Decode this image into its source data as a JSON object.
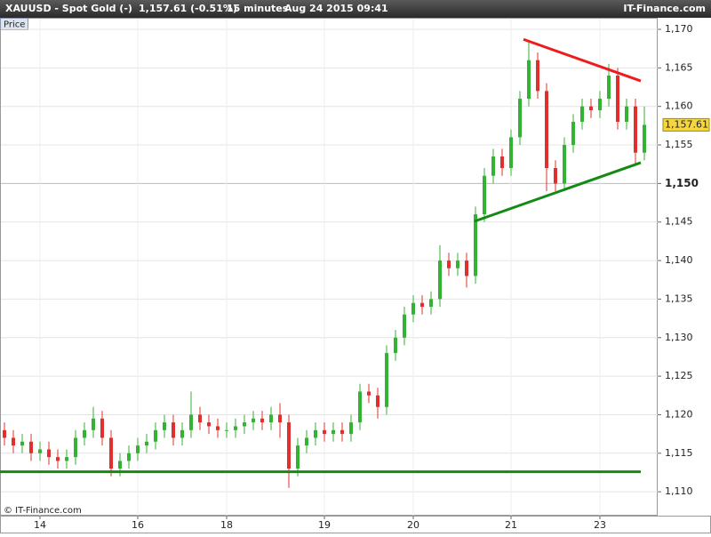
{
  "chart_data": {
    "type": "candlestick",
    "header": {
      "symbol": "XAUUSD - Spot Gold (-)",
      "quote": "1,157.61 (-0.51%)",
      "interval": "15 minutes",
      "datetime": "Aug 24 2015 09:41",
      "site": "IT-Finance.com"
    },
    "panel_label": "Price",
    "copyright": "© IT-Finance.com",
    "up_color": "#33b233",
    "down_color": "#e0302e",
    "categories": [
      null,
      null,
      null,
      null,
      "14",
      null,
      null,
      null,
      null,
      null,
      null,
      null,
      null,
      null,
      null,
      "16",
      null,
      null,
      null,
      null,
      null,
      null,
      null,
      null,
      null,
      "18",
      null,
      null,
      null,
      null,
      null,
      null,
      null,
      null,
      null,
      null,
      "19",
      null,
      null,
      null,
      null,
      null,
      null,
      null,
      null,
      null,
      "20",
      null,
      null,
      null,
      null,
      null,
      null,
      null,
      null,
      null,
      null,
      "21",
      null,
      null,
      null,
      null,
      null,
      null,
      null,
      null,
      null,
      "23",
      null,
      null,
      null,
      null,
      null
    ],
    "open": [
      1118,
      1117,
      1116,
      1116.5,
      1115,
      1115.5,
      1114.5,
      1114,
      1114.5,
      1117,
      1118,
      1119.5,
      1117,
      1113,
      1114,
      1115,
      1116,
      1116.5,
      1118,
      1119,
      1117,
      1118,
      1120,
      1119,
      1118.5,
      1118,
      1118,
      1118.5,
      1119,
      1119.5,
      1119,
      1120,
      1119,
      1113,
      1116,
      1117,
      1118,
      1117.5,
      1118,
      1117.5,
      1119,
      1123,
      1122.5,
      1121,
      1128,
      1130,
      1133,
      1134.5,
      1134,
      1135,
      1140,
      1139,
      1140,
      1138,
      1146,
      1151,
      1153.5,
      1152,
      1156,
      1161,
      1166,
      1162,
      1152,
      1150,
      1155,
      1158,
      1160,
      1159.5,
      1161,
      1164,
      1158,
      1160,
      1154
    ],
    "high": [
      1119,
      1118,
      1117.5,
      1117.5,
      1116.5,
      1116.5,
      1115.5,
      1115.5,
      1118,
      1119,
      1121,
      1120.5,
      1118,
      1115,
      1116,
      1117,
      1117.5,
      1119,
      1120,
      1120,
      1119,
      1123,
      1121,
      1120,
      1119.5,
      1119,
      1119.5,
      1120,
      1120.5,
      1120.5,
      1121,
      1121.5,
      1120,
      1117,
      1118,
      1119,
      1119,
      1119,
      1119,
      1120,
      1124,
      1124,
      1123.5,
      1129,
      1131,
      1134,
      1135.5,
      1135.5,
      1136,
      1142,
      1141,
      1141,
      1141,
      1147,
      1152,
      1154.5,
      1154.5,
      1157,
      1162,
      1168.5,
      1167,
      1163,
      1153,
      1156,
      1159,
      1161,
      1161,
      1162,
      1165.5,
      1165,
      1161,
      1161,
      1160
    ],
    "low": [
      1116,
      1115,
      1115,
      1114,
      1114,
      1113.5,
      1113,
      1113,
      1113.5,
      1116,
      1117,
      1116,
      1112,
      1112,
      1113,
      1114,
      1115,
      1115.5,
      1117,
      1116,
      1116,
      1117,
      1118,
      1117.5,
      1117,
      1117,
      1117,
      1117.5,
      1118,
      1118,
      1118,
      1117,
      1110.5,
      1112,
      1115,
      1116,
      1116.5,
      1116.5,
      1116.5,
      1116.5,
      1118,
      1121.5,
      1119.5,
      1120,
      1127,
      1129,
      1132,
      1133,
      1133,
      1134,
      1138,
      1138,
      1136.5,
      1137,
      1145,
      1150,
      1151,
      1151,
      1155,
      1160,
      1161,
      1149,
      1149,
      1149,
      1154,
      1157,
      1158.5,
      1158.5,
      1160,
      1157,
      1157,
      1152.5,
      1153
    ],
    "close": [
      1117,
      1116,
      1116.5,
      1115,
      1115.5,
      1114.5,
      1114,
      1114.5,
      1117,
      1118,
      1119.5,
      1117,
      1113,
      1114,
      1115,
      1116,
      1116.5,
      1118,
      1119,
      1117,
      1118,
      1120,
      1119,
      1118.5,
      1118,
      1118,
      1118.5,
      1119,
      1119.5,
      1119,
      1120,
      1119,
      1113,
      1116,
      1117,
      1118,
      1117.5,
      1118,
      1117.5,
      1119,
      1123,
      1122.5,
      1121,
      1128,
      1130,
      1133,
      1134.5,
      1134,
      1135,
      1140,
      1139,
      1140,
      1138,
      1146,
      1151,
      1153.5,
      1152,
      1156,
      1161,
      1166,
      1162,
      1152,
      1150,
      1155,
      1158,
      1160,
      1159.5,
      1161,
      1164,
      1158,
      1160,
      1154,
      1157.61
    ],
    "last_label": "1,157.61",
    "trendlines": [
      {
        "color": "#ee1c1c",
        "x": [
          58.4,
          71.6
        ],
        "y": [
          1168.7,
          1163.3
        ]
      },
      {
        "color": "#138a13",
        "x": [
          52.9,
          71.6
        ],
        "y": [
          1145.1,
          1152.7
        ]
      },
      {
        "color": "#138a13",
        "x": [
          -0.5,
          71.6
        ],
        "y": [
          1112.6,
          1112.6
        ]
      }
    ],
    "ylim": [
      1106.9,
      1171.5
    ],
    "yticks": [
      {
        "value": 1110,
        "label": "1,110"
      },
      {
        "value": 1115,
        "label": "1,115"
      },
      {
        "value": 1120,
        "label": "1,120"
      },
      {
        "value": 1125,
        "label": "1,125"
      },
      {
        "value": 1130,
        "label": "1,130"
      },
      {
        "value": 1135,
        "label": "1,135"
      },
      {
        "value": 1140,
        "label": "1,140"
      },
      {
        "value": 1145,
        "label": "1,145"
      },
      {
        "value": 1150,
        "label": "1,150",
        "bold": true
      },
      {
        "value": 1155,
        "label": "1,155"
      },
      {
        "value": 1160,
        "label": "1,160"
      },
      {
        "value": 1165,
        "label": "1,165"
      },
      {
        "value": 1170,
        "label": "1,170"
      }
    ],
    "grid": true
  }
}
